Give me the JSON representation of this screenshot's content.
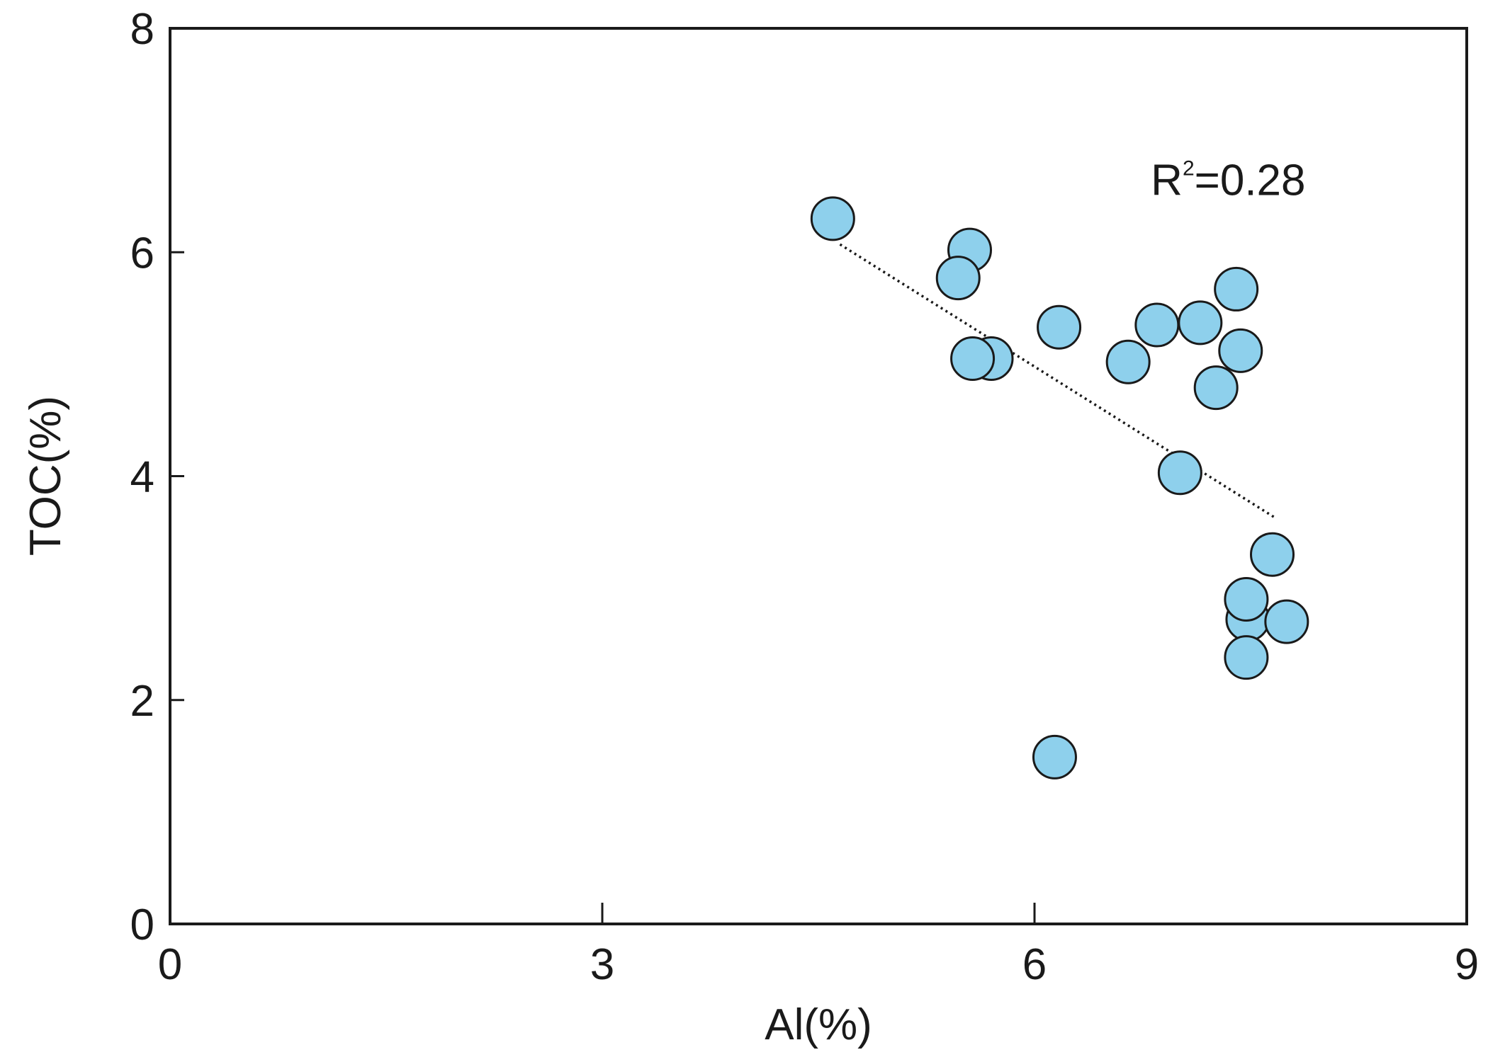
{
  "chart_data": {
    "type": "scatter",
    "xlabel": "Al(%)",
    "ylabel": "TOC(%)",
    "xlim": [
      0,
      9
    ],
    "ylim": [
      0,
      8
    ],
    "xticks": [
      0,
      3,
      6,
      9
    ],
    "yticks": [
      0,
      2,
      4,
      6,
      8
    ],
    "grid": false,
    "marker_color": "#8ed0ec",
    "marker_edge_color": "#1a1a1a",
    "points": [
      {
        "x": 4.6,
        "y": 6.3
      },
      {
        "x": 5.55,
        "y": 6.02
      },
      {
        "x": 5.47,
        "y": 5.77
      },
      {
        "x": 5.7,
        "y": 5.05
      },
      {
        "x": 5.57,
        "y": 5.05
      },
      {
        "x": 6.17,
        "y": 5.33
      },
      {
        "x": 6.65,
        "y": 5.02
      },
      {
        "x": 6.85,
        "y": 5.35
      },
      {
        "x": 7.15,
        "y": 5.37
      },
      {
        "x": 7.4,
        "y": 5.67
      },
      {
        "x": 7.43,
        "y": 5.12
      },
      {
        "x": 7.26,
        "y": 4.79
      },
      {
        "x": 7.01,
        "y": 4.03
      },
      {
        "x": 7.65,
        "y": 3.3
      },
      {
        "x": 7.48,
        "y": 2.72
      },
      {
        "x": 7.47,
        "y": 2.9
      },
      {
        "x": 7.75,
        "y": 2.7
      },
      {
        "x": 7.47,
        "y": 2.38
      },
      {
        "x": 6.14,
        "y": 1.49
      }
    ],
    "trendline": {
      "x": [
        4.65,
        7.68
      ],
      "y": [
        6.07,
        3.62
      ],
      "style": "dotted"
    },
    "annotation": {
      "base": "R",
      "sup": "2",
      "rest": "=0.28",
      "x": 7.25,
      "y": 6.65
    }
  }
}
